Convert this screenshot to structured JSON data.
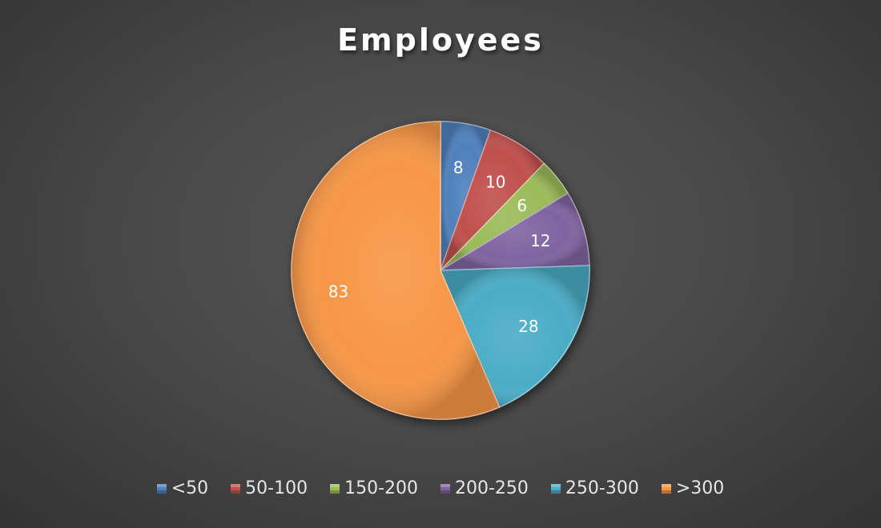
{
  "chart_data": {
    "type": "pie",
    "title": "Employees",
    "categories": [
      "<50",
      "50-100",
      "150-200",
      "200-250",
      "250-300",
      ">300"
    ],
    "values": [
      8,
      10,
      6,
      12,
      28,
      83
    ],
    "colors": [
      "#4f81bd",
      "#c0504d",
      "#9bbb59",
      "#8064a2",
      "#4bacc6",
      "#f79646"
    ],
    "data_labels": [
      "8",
      "10",
      "6",
      "12",
      "28",
      "83"
    ],
    "legend_position": "bottom"
  }
}
